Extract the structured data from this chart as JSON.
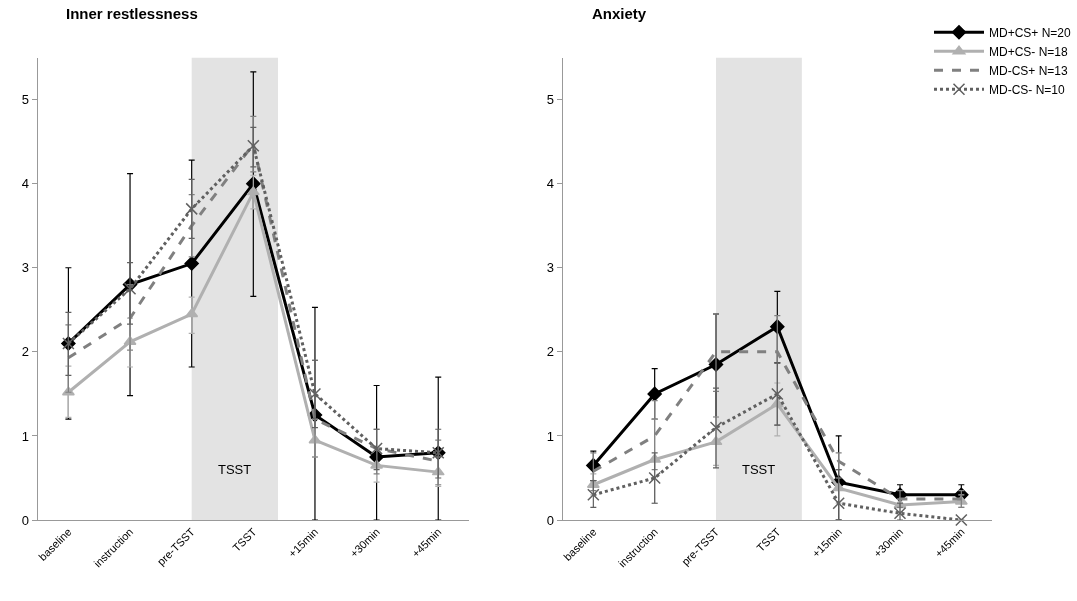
{
  "chart_data": [
    {
      "type": "line",
      "title": "Inner restlessness",
      "categories": [
        "baseline",
        "instruction",
        "pre-TSST",
        "TSST",
        "+15min",
        "+30min",
        "+45min"
      ],
      "ylim": [
        0,
        5.5
      ],
      "yticks": [
        0,
        1,
        2,
        3,
        4,
        5
      ],
      "grid": false,
      "legend": false,
      "bands": [
        {
          "axis": "x",
          "from": "pre-TSST",
          "to": "TSST",
          "label": "TSST",
          "color": "#e3e3e3"
        }
      ],
      "series": [
        {
          "color": "#000000",
          "marker": "diamond",
          "line_style": "solid",
          "values": [
            2.1,
            2.8,
            3.05,
            4.0,
            1.25,
            0.75,
            0.8
          ],
          "errors": [
            [
              1.2,
              3.0
            ],
            [
              1.48,
              4.12
            ],
            [
              1.82,
              4.28
            ],
            [
              2.66,
              5.33
            ],
            [
              0,
              2.53
            ],
            [
              0,
              1.6
            ],
            [
              0,
              1.7
            ]
          ]
        },
        {
          "color": "#b0b0b0",
          "marker": "triangle",
          "line_style": "solid",
          "values": [
            1.52,
            2.12,
            2.45,
            3.9,
            0.95,
            0.65,
            0.57
          ],
          "errors": [
            [
              1.22,
              1.83
            ],
            [
              1.82,
              2.4
            ],
            [
              2.22,
              2.65
            ],
            [
              3.7,
              4.1
            ],
            [
              0.75,
              1.2
            ],
            [
              0.45,
              0.85
            ],
            [
              0.4,
              0.75
            ]
          ]
        },
        {
          "color": "#808080",
          "marker": "none",
          "line_style": "dashed",
          "values": [
            1.93,
            2.4,
            3.5,
            4.47,
            1.2,
            0.85,
            0.7
          ],
          "errors": [
            [
              1.52,
              2.32
            ],
            [
              2.02,
              2.8
            ],
            [
              3.13,
              3.87
            ],
            [
              4.14,
              4.8
            ],
            [
              0.75,
              1.9
            ],
            [
              0.55,
              1.08
            ],
            [
              0.42,
              0.95
            ]
          ]
        },
        {
          "color": "#606060",
          "marker": "cross",
          "line_style": "dotted",
          "values": [
            2.1,
            2.75,
            3.7,
            4.45,
            1.5,
            0.85,
            0.8
          ],
          "errors": [
            [
              1.72,
              2.47
            ],
            [
              2.33,
              3.06
            ],
            [
              3.35,
              4.05
            ],
            [
              4.2,
              4.67
            ],
            [
              1.1,
              1.9
            ],
            [
              0.6,
              1.08
            ],
            [
              0.5,
              1.08
            ]
          ]
        }
      ]
    },
    {
      "type": "line",
      "title": "Anxiety",
      "categories": [
        "baseline",
        "instruction",
        "pre-TSST",
        "TSST",
        "+15min",
        "+30min",
        "+45min"
      ],
      "ylim": [
        0,
        5.5
      ],
      "yticks": [
        0,
        1,
        2,
        3,
        4,
        5
      ],
      "grid": false,
      "legend": "top right",
      "bands": [
        {
          "axis": "x",
          "from": "pre-TSST",
          "to": "TSST",
          "label": "TSST",
          "color": "#e3e3e3"
        }
      ],
      "series": [
        {
          "name": "MD+CS+ N=20",
          "color": "#000000",
          "marker": "diamond",
          "line_style": "solid",
          "values": [
            0.65,
            1.5,
            1.85,
            2.3,
            0.45,
            0.3,
            0.3
          ],
          "errors": [
            [
              0.47,
              0.82
            ],
            [
              1.2,
              1.8
            ],
            [
              1.23,
              2.45
            ],
            [
              1.87,
              2.72
            ],
            [
              0,
              1.0
            ],
            [
              0.2,
              0.42
            ],
            [
              0.2,
              0.42
            ]
          ]
        },
        {
          "name": "MD+CS- N=18",
          "color": "#b0b0b0",
          "marker": "triangle",
          "line_style": "solid",
          "values": [
            0.42,
            0.72,
            0.93,
            1.38,
            0.38,
            0.18,
            0.22
          ],
          "errors": [
            [
              0.3,
              0.55
            ],
            [
              0.2,
              1.2
            ],
            [
              0.65,
              1.23
            ],
            [
              1.0,
              1.63
            ],
            [
              0.2,
              0.5
            ],
            [
              0.1,
              0.25
            ],
            [
              0.15,
              0.3
            ]
          ]
        },
        {
          "name": "MD-CS+ N=13",
          "color": "#808080",
          "marker": "none",
          "line_style": "dashed",
          "values": [
            0.58,
            1.0,
            2.0,
            2.0,
            0.7,
            0.25,
            0.25
          ],
          "errors": [
            [
              0.35,
              0.8
            ],
            [
              0.6,
              1.42
            ],
            [
              1.53,
              2.45
            ],
            [
              1.13,
              2.43
            ],
            [
              0.6,
              0.8
            ],
            [
              0.15,
              0.35
            ],
            [
              0.15,
              0.35
            ]
          ]
        },
        {
          "name": "MD-CS- N=10",
          "color": "#606060",
          "marker": "cross",
          "line_style": "dotted",
          "values": [
            0.3,
            0.5,
            1.1,
            1.5,
            0.2,
            0.08,
            0.0
          ],
          "errors": [
            [
              0.15,
              0.47
            ],
            [
              0.2,
              0.8
            ],
            [
              0.62,
              1.57
            ],
            [
              1.13,
              1.87
            ],
            [
              0,
              0.6
            ],
            [
              0,
              0.2
            ],
            null
          ]
        }
      ]
    }
  ]
}
